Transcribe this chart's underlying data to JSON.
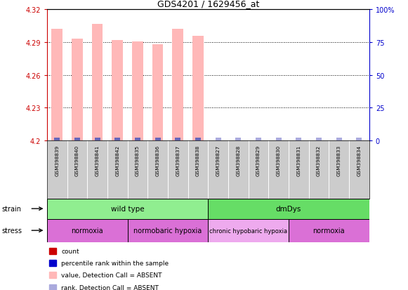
{
  "title": "GDS4201 / 1629456_at",
  "samples": [
    "GSM398839",
    "GSM398840",
    "GSM398841",
    "GSM398842",
    "GSM398835",
    "GSM398836",
    "GSM398837",
    "GSM398838",
    "GSM398827",
    "GSM398828",
    "GSM398829",
    "GSM398830",
    "GSM398831",
    "GSM398832",
    "GSM398833",
    "GSM398834"
  ],
  "bar_values": [
    4.302,
    4.293,
    4.307,
    4.292,
    4.291,
    4.288,
    4.302,
    4.296,
    4.2,
    4.2,
    4.2,
    4.2,
    4.2,
    4.2,
    4.2,
    4.2
  ],
  "n_present": 8,
  "n_absent": 8,
  "bar_color_present": "#ffb8b8",
  "bar_color_absent": "#ffb8b8",
  "rank_color_present": "#6666bb",
  "rank_color_absent": "#aaaadd",
  "ylim_left": [
    4.2,
    4.32
  ],
  "ylim_right": [
    0,
    100
  ],
  "yticks_left": [
    4.2,
    4.23,
    4.26,
    4.29,
    4.32
  ],
  "yticks_right": [
    0,
    25,
    50,
    75,
    100
  ],
  "ytick_labels_right": [
    "0",
    "25",
    "50",
    "75",
    "100%"
  ],
  "ytick_labels_left": [
    "4.2",
    "4.23",
    "4.26",
    "4.29",
    "4.32"
  ],
  "strain_groups": [
    {
      "label": "wild type",
      "start": 0,
      "end": 8,
      "color": "#90ee90"
    },
    {
      "label": "dmDys",
      "start": 8,
      "end": 16,
      "color": "#66dd66"
    }
  ],
  "stress_groups": [
    {
      "label": "normoxia",
      "start": 0,
      "end": 4,
      "color": "#da70d6"
    },
    {
      "label": "normobaric hypoxia",
      "start": 4,
      "end": 8,
      "color": "#da70d6"
    },
    {
      "label": "chronic hypobaric hypoxia",
      "start": 8,
      "end": 12,
      "color": "#eeaaee"
    },
    {
      "label": "normoxia",
      "start": 12,
      "end": 16,
      "color": "#da70d6"
    }
  ],
  "legend_items": [
    {
      "label": "count",
      "color": "#cc0000"
    },
    {
      "label": "percentile rank within the sample",
      "color": "#0000cc"
    },
    {
      "label": "value, Detection Call = ABSENT",
      "color": "#ffb8b8"
    },
    {
      "label": "rank, Detection Call = ABSENT",
      "color": "#aaaadd"
    }
  ],
  "bar_width": 0.55,
  "bg_color": "#ffffff",
  "plot_bg": "#ffffff",
  "axis_color_left": "#cc0000",
  "axis_color_right": "#0000cc",
  "sample_area_color": "#cccccc",
  "grid_dotted_at": [
    4.23,
    4.26,
    4.29
  ],
  "figure_width": 5.81,
  "figure_height": 4.14,
  "dpi": 100
}
